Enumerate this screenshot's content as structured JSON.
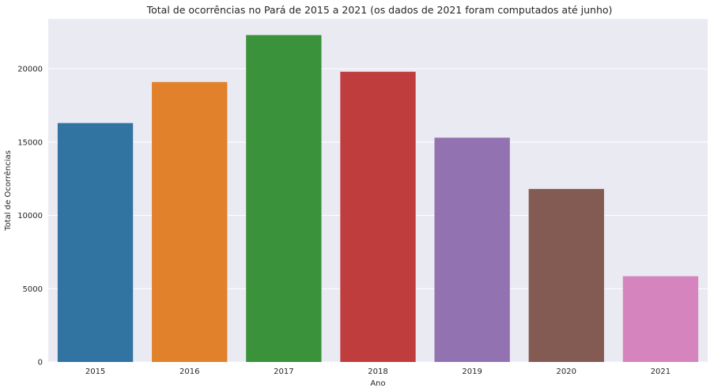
{
  "chart_data": {
    "type": "bar",
    "title": "Total de ocorrências no Pará de 2015 a 2021 (os dados de 2021 foram computados até junho)",
    "xlabel": "Ano",
    "ylabel": "Total de Ocorrências",
    "categories": [
      "2015",
      "2016",
      "2017",
      "2018",
      "2019",
      "2020",
      "2021"
    ],
    "values": [
      16300,
      19100,
      22300,
      19800,
      15300,
      11800,
      5850
    ],
    "colors": [
      "#3274a1",
      "#e1812c",
      "#3a923a",
      "#c03d3e",
      "#9372b2",
      "#845b53",
      "#d684bd"
    ],
    "ylim": [
      0,
      23400
    ],
    "yticks": [
      0,
      5000,
      10000,
      15000,
      20000
    ],
    "ytick_labels": [
      "0",
      "5000",
      "10000",
      "15000",
      "20000"
    ],
    "grid": true,
    "background": "#eaeaf2"
  }
}
